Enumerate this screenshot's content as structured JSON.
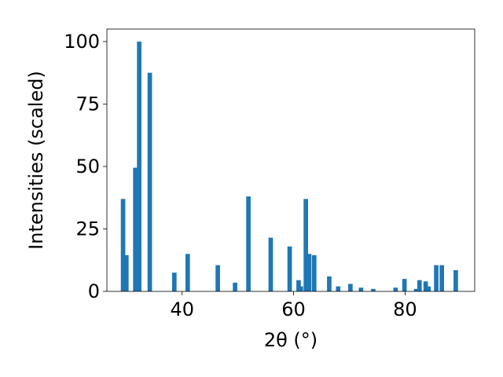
{
  "chart_data": {
    "type": "bar",
    "xlabel": "2θ (°)",
    "ylabel": "Intensities (scaled)",
    "xlim": [
      26.5,
      92.5
    ],
    "ylim": [
      0,
      105
    ],
    "x_ticks": [
      40,
      60,
      80
    ],
    "y_ticks": [
      0,
      25,
      50,
      75,
      100
    ],
    "bar_color": "#1f77b4",
    "grid": false,
    "points": [
      {
        "x": 29.4,
        "y": 37
      },
      {
        "x": 30.0,
        "y": 14.5
      },
      {
        "x": 31.6,
        "y": 49.5
      },
      {
        "x": 32.3,
        "y": 100
      },
      {
        "x": 34.2,
        "y": 87.5
      },
      {
        "x": 38.6,
        "y": 7.5
      },
      {
        "x": 41.0,
        "y": 15
      },
      {
        "x": 46.4,
        "y": 10.5
      },
      {
        "x": 49.5,
        "y": 3.5
      },
      {
        "x": 51.9,
        "y": 38
      },
      {
        "x": 55.9,
        "y": 21.5
      },
      {
        "x": 59.3,
        "y": 18
      },
      {
        "x": 60.9,
        "y": 4.5
      },
      {
        "x": 61.3,
        "y": 2
      },
      {
        "x": 62.2,
        "y": 37
      },
      {
        "x": 62.8,
        "y": 15
      },
      {
        "x": 63.7,
        "y": 14.5
      },
      {
        "x": 66.4,
        "y": 6
      },
      {
        "x": 68.0,
        "y": 2
      },
      {
        "x": 70.2,
        "y": 3
      },
      {
        "x": 72.1,
        "y": 1.5
      },
      {
        "x": 74.3,
        "y": 1
      },
      {
        "x": 78.3,
        "y": 1.5
      },
      {
        "x": 79.9,
        "y": 5
      },
      {
        "x": 82.0,
        "y": 1
      },
      {
        "x": 82.6,
        "y": 4.5
      },
      {
        "x": 83.7,
        "y": 4
      },
      {
        "x": 84.2,
        "y": 2
      },
      {
        "x": 85.6,
        "y": 10.5
      },
      {
        "x": 86.6,
        "y": 10.5
      },
      {
        "x": 89.1,
        "y": 8.5
      }
    ]
  }
}
